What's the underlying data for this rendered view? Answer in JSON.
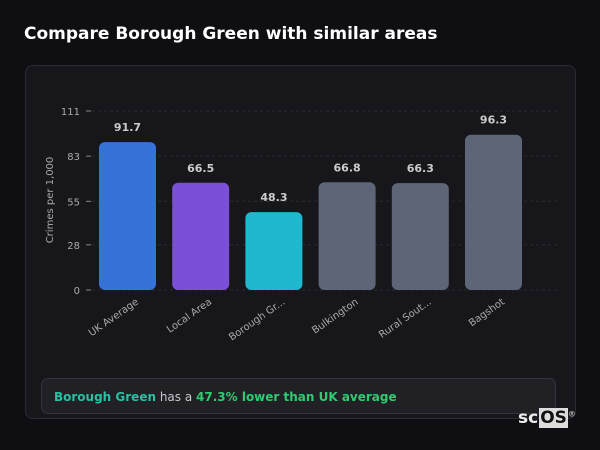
{
  "title": "Compare Borough Green with similar areas",
  "chart_data": {
    "type": "bar",
    "categories": [
      "UK Average",
      "Local Area",
      "Borough Gr...",
      "Bulkington",
      "Rural Sout...",
      "Bagshot"
    ],
    "values": [
      91.7,
      66.5,
      48.3,
      66.8,
      66.3,
      96.3
    ],
    "value_labels": [
      "91.7",
      "66.5",
      "48.3",
      "66.8",
      "66.3",
      "96.3"
    ],
    "colors": [
      "#3573d9",
      "#7b50d6",
      "#1fb8cf",
      "#5c6677",
      "#5c6677",
      "#5c6677"
    ],
    "ylabel": "Crimes per 1,000",
    "yticks": [
      0,
      28,
      55,
      83,
      111
    ],
    "ylim": [
      0,
      111
    ],
    "grid": true
  },
  "summary": {
    "area": "Borough Green",
    "mid": " has a ",
    "highlight": "47.3% lower than UK average"
  },
  "logo": {
    "a": "sc",
    "b": "OS",
    "mark": "®"
  }
}
